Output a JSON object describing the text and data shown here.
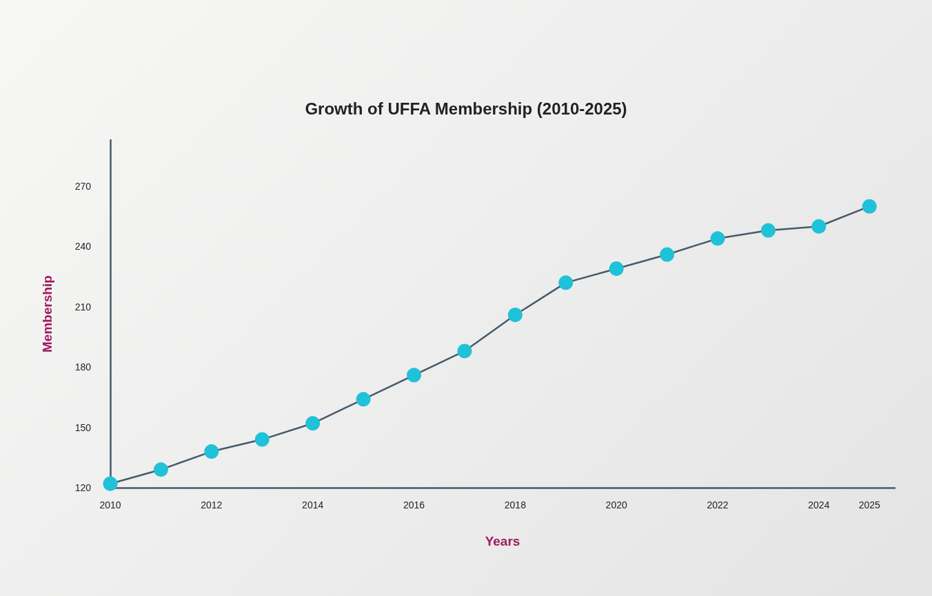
{
  "chart_data": {
    "type": "line",
    "title": "Growth of UFFA Membership (2010-2025)",
    "xlabel": "Years",
    "ylabel": "Membership",
    "x": [
      2010,
      2011,
      2012,
      2013,
      2014,
      2015,
      2016,
      2017,
      2018,
      2019,
      2020,
      2021,
      2022,
      2023,
      2024,
      2025
    ],
    "series": [
      {
        "color": "#1fc2d8",
        "values": [
          122,
          129,
          138,
          144,
          152,
          164,
          176,
          188,
          206,
          222,
          229,
          236,
          244,
          248,
          250,
          260
        ]
      }
    ],
    "xlim": [
      2010,
      2025.5
    ],
    "xticks": [
      2010,
      2012,
      2014,
      2016,
      2018,
      2020,
      2022,
      2024,
      2025
    ],
    "ylim": [
      120,
      293
    ],
    "yticks": [
      120,
      150,
      180,
      210,
      240,
      270
    ],
    "grid": false,
    "marker": "circle",
    "line_style": "solid"
  }
}
